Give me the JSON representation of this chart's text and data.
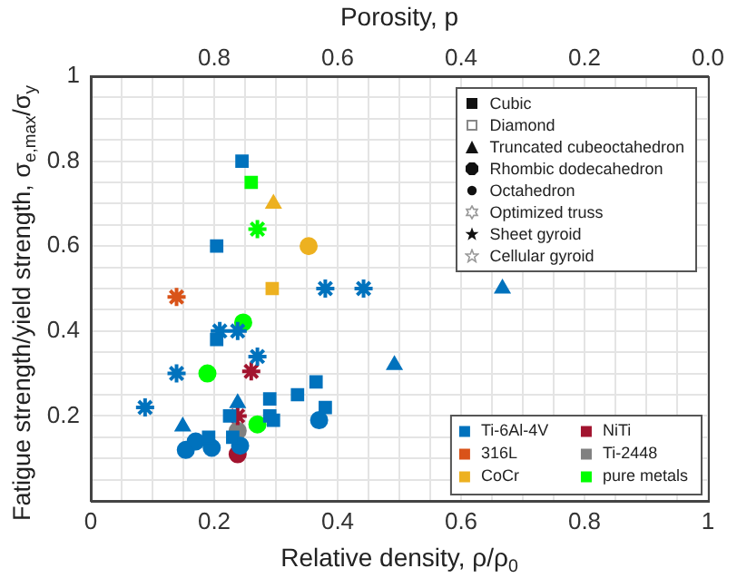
{
  "chart_data": {
    "type": "scatter",
    "xlabel": "Relative density, ρ/ρ$_{0}$",
    "ylabel": "Fatigue strength/yield strength, σ$_{e,max}$/σ$_{y}$",
    "x2label": "Porosity, p",
    "xlim": [
      0,
      1
    ],
    "ylim": [
      0,
      1
    ],
    "x2lim": [
      1,
      0
    ],
    "xticks": [
      {
        "value": 0,
        "label": "0"
      },
      {
        "value": 0.05,
        "label": null
      },
      {
        "value": 0.1,
        "label": null
      },
      {
        "value": 0.15,
        "label": null
      },
      0.2,
      {
        "value": 0.25,
        "label": null
      },
      {
        "value": 0.3,
        "label": null
      },
      {
        "value": 0.35,
        "label": null
      },
      0.4,
      {
        "value": 0.45,
        "label": null
      },
      {
        "value": 0.5,
        "label": null
      },
      {
        "value": 0.55,
        "label": null
      },
      0.6,
      {
        "value": 0.65,
        "label": null
      },
      {
        "value": 0.7,
        "label": null
      },
      {
        "value": 0.75,
        "label": null
      },
      0.8,
      {
        "value": 0.85,
        "label": null
      },
      {
        "value": 0.9,
        "label": null
      },
      {
        "value": 0.95,
        "label": null
      },
      {
        "value": 1,
        "label": "1"
      }
    ],
    "yticks": [
      {
        "value": 0,
        "label": null
      },
      {
        "value": 0.05,
        "label": null
      },
      {
        "value": 0.1,
        "label": null
      },
      {
        "value": 0.15,
        "label": null
      },
      0.2,
      {
        "value": 0.25,
        "label": null
      },
      {
        "value": 0.3,
        "label": null
      },
      {
        "value": 0.35,
        "label": null
      },
      0.4,
      {
        "value": 0.45,
        "label": null
      },
      {
        "value": 0.5,
        "label": null
      },
      {
        "value": 0.55,
        "label": null
      },
      0.6,
      {
        "value": 0.65,
        "label": null
      },
      {
        "value": 0.7,
        "label": null
      },
      {
        "value": 0.75,
        "label": null
      },
      0.8,
      {
        "value": 0.85,
        "label": null
      },
      {
        "value": 0.9,
        "label": null
      },
      {
        "value": 0.95,
        "label": null
      },
      {
        "value": 1,
        "label": "1"
      }
    ],
    "x2ticks": [
      0.8,
      0.6,
      0.4,
      0.2,
      {
        "value": 0,
        "label": "0.0"
      }
    ],
    "grid": true,
    "legend": "bottom right",
    "annotations": [
      "Cubic",
      "Diamond",
      "Truncated cubeoctahedron",
      "Rhombic dodecahedron",
      "Octahedron",
      "Optimized truss",
      "Sheet gyroid",
      "Cellular gyroid"
    ],
    "series": [
      {
        "name": "Ti-6Al-4V",
        "color": "#0072bd",
        "marker": "square",
        "x": [
          0.245,
          0.204,
          0.204,
          0.29,
          0.335,
          0.365,
          0.38,
          0.29,
          0.296,
          0.225,
          0.191,
          0.23
        ],
        "values": [
          0.8,
          0.6,
          0.38,
          0.24,
          0.25,
          0.28,
          0.22,
          0.2,
          0.19,
          0.2,
          0.15,
          0.15
        ]
      },
      {
        "color": "#0072bd",
        "marker": "triangle",
        "x": [
          0.492,
          0.667,
          0.238,
          0.149
        ],
        "values": [
          0.32,
          0.5,
          0.23,
          0.175
        ]
      },
      {
        "color": "#0072bd",
        "marker": "circle",
        "x": [
          0.37,
          0.154,
          0.17,
          0.196,
          0.242
        ],
        "values": [
          0.19,
          0.12,
          0.14,
          0.125,
          0.13
        ]
      },
      {
        "color": "#0072bd",
        "marker": "cross",
        "x": [
          0.27,
          0.38,
          0.442,
          0.209,
          0.238,
          0.139,
          0.088
        ],
        "values": [
          0.34,
          0.5,
          0.5,
          0.4,
          0.4,
          0.3,
          0.22
        ]
      },
      {
        "name": "316L",
        "color": "#d95319",
        "marker": "cross",
        "x": [
          0.139
        ],
        "values": [
          0.48
        ]
      },
      {
        "name": "CoCr",
        "color": "#edb120",
        "marker": "square",
        "x": [
          0.294
        ],
        "values": [
          0.5
        ]
      },
      {
        "color": "#edb120",
        "marker": "triangle",
        "x": [
          0.296
        ],
        "values": [
          0.7
        ]
      },
      {
        "color": "#edb120",
        "marker": "circle",
        "x": [
          0.353
        ],
        "values": [
          0.6
        ]
      },
      {
        "name": "NiTi",
        "color": "#a2142f",
        "marker": "circle",
        "x": [
          0.238
        ],
        "values": [
          0.11
        ]
      },
      {
        "color": "#a2142f",
        "marker": "cross",
        "x": [
          0.26,
          0.238
        ],
        "values": [
          0.305,
          0.2
        ]
      },
      {
        "name": "Ti-2448",
        "color": "#808080",
        "marker": "circle",
        "x": [
          0.238
        ],
        "values": [
          0.165
        ]
      },
      {
        "name": "pure metals",
        "color": "#00ff00",
        "marker": "square",
        "x": [
          0.26
        ],
        "values": [
          0.75
        ]
      },
      {
        "color": "#00ff00",
        "marker": "circle",
        "x": [
          0.247,
          0.189,
          0.27
        ],
        "values": [
          0.42,
          0.3,
          0.18
        ]
      },
      {
        "color": "#00ff00",
        "marker": "cross",
        "x": [
          0.27
        ],
        "values": [
          0.64
        ]
      }
    ]
  }
}
